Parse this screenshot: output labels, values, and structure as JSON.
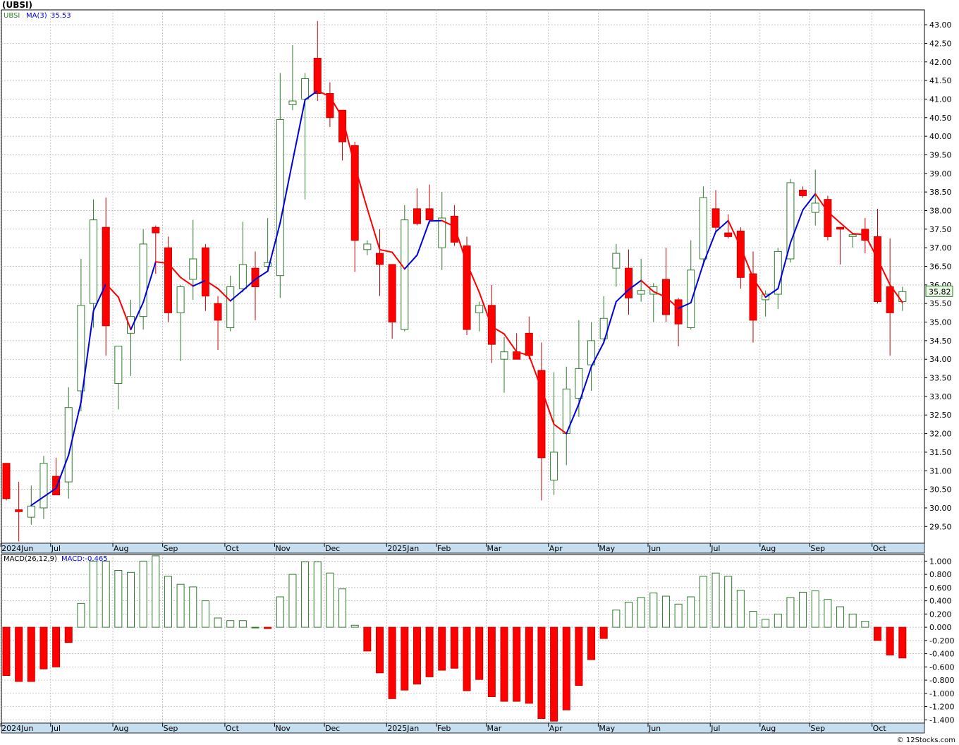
{
  "chart_data": [
    {
      "type": "candlestick",
      "title": "(UBSI)",
      "symbol": "UBSI",
      "ma_label": "MA(3)",
      "ma_value": "35.53",
      "last_price": "35.82",
      "ylim": [
        29.05,
        43.4
      ],
      "y_ticks": [
        "43.00",
        "42.50",
        "42.00",
        "41.50",
        "41.00",
        "40.50",
        "40.00",
        "39.50",
        "39.00",
        "38.50",
        "38.00",
        "37.50",
        "37.00",
        "36.50",
        "36.00",
        "35.50",
        "35.00",
        "34.50",
        "34.00",
        "33.50",
        "33.00",
        "32.50",
        "32.00",
        "31.50",
        "31.00",
        "30.50",
        "30.00",
        "29.50"
      ],
      "x_month_labels": [
        {
          "label": "2024Jun",
          "week": 0
        },
        {
          "label": "Jul",
          "week": 4
        },
        {
          "label": "Aug",
          "week": 9
        },
        {
          "label": "Sep",
          "week": 13
        },
        {
          "label": "Oct",
          "week": 18
        },
        {
          "label": "Nov",
          "week": 22
        },
        {
          "label": "Dec",
          "week": 26
        },
        {
          "label": "2025Jan",
          "week": 31
        },
        {
          "label": "Feb",
          "week": 35
        },
        {
          "label": "Mar",
          "week": 39
        },
        {
          "label": "Apr",
          "week": 44
        },
        {
          "label": "May",
          "week": 48
        },
        {
          "label": "Jun",
          "week": 52
        },
        {
          "label": "Jul",
          "week": 57
        },
        {
          "label": "Aug",
          "week": 61
        },
        {
          "label": "Sep",
          "week": 65
        },
        {
          "label": "Oct",
          "week": 70
        }
      ],
      "candles": [
        {
          "o": 31.2,
          "h": 31.2,
          "l": 30.2,
          "c": 30.25
        },
        {
          "o": 29.95,
          "h": 30.7,
          "l": 29.1,
          "c": 29.9
        },
        {
          "o": 29.75,
          "h": 30.6,
          "l": 29.55,
          "c": 30.05
        },
        {
          "o": 30.0,
          "h": 31.4,
          "l": 29.7,
          "c": 31.2
        },
        {
          "o": 30.85,
          "h": 31.35,
          "l": 30.35,
          "c": 30.35
        },
        {
          "o": 30.7,
          "h": 33.25,
          "l": 30.25,
          "c": 32.7
        },
        {
          "o": 33.15,
          "h": 36.7,
          "l": 32.6,
          "c": 35.45
        },
        {
          "o": 35.5,
          "h": 38.3,
          "l": 34.85,
          "c": 37.75
        },
        {
          "o": 37.55,
          "h": 38.35,
          "l": 34.1,
          "c": 34.9
        },
        {
          "o": 33.35,
          "h": 34.35,
          "l": 32.65,
          "c": 34.35
        },
        {
          "o": 34.7,
          "h": 35.6,
          "l": 33.55,
          "c": 35.15
        },
        {
          "o": 35.15,
          "h": 37.5,
          "l": 34.8,
          "c": 37.1
        },
        {
          "o": 37.55,
          "h": 37.6,
          "l": 36.3,
          "c": 37.4
        },
        {
          "o": 37.0,
          "h": 37.3,
          "l": 35.0,
          "c": 35.25
        },
        {
          "o": 35.25,
          "h": 36.0,
          "l": 33.95,
          "c": 35.95
        },
        {
          "o": 36.15,
          "h": 37.75,
          "l": 35.6,
          "c": 36.7
        },
        {
          "o": 37.0,
          "h": 37.1,
          "l": 35.3,
          "c": 35.7
        },
        {
          "o": 35.5,
          "h": 35.7,
          "l": 34.25,
          "c": 35.05
        },
        {
          "o": 34.85,
          "h": 36.25,
          "l": 34.75,
          "c": 35.95
        },
        {
          "o": 35.9,
          "h": 37.7,
          "l": 35.8,
          "c": 36.55
        },
        {
          "o": 36.45,
          "h": 36.9,
          "l": 35.05,
          "c": 35.95
        },
        {
          "o": 36.5,
          "h": 37.8,
          "l": 36.35,
          "c": 36.6
        },
        {
          "o": 36.25,
          "h": 41.7,
          "l": 35.65,
          "c": 40.45
        },
        {
          "o": 40.85,
          "h": 42.45,
          "l": 40.7,
          "c": 40.95
        },
        {
          "o": 41.0,
          "h": 41.7,
          "l": 38.3,
          "c": 41.55
        },
        {
          "o": 42.1,
          "h": 43.1,
          "l": 40.95,
          "c": 41.15
        },
        {
          "o": 41.15,
          "h": 41.45,
          "l": 40.25,
          "c": 40.5
        },
        {
          "o": 40.7,
          "h": 40.7,
          "l": 39.35,
          "c": 39.85
        },
        {
          "o": 39.75,
          "h": 39.85,
          "l": 36.35,
          "c": 37.2
        },
        {
          "o": 36.95,
          "h": 37.2,
          "l": 36.8,
          "c": 37.1
        },
        {
          "o": 36.85,
          "h": 37.5,
          "l": 35.7,
          "c": 36.55
        },
        {
          "o": 36.55,
          "h": 36.55,
          "l": 34.55,
          "c": 35.0
        },
        {
          "o": 34.8,
          "h": 38.15,
          "l": 34.75,
          "c": 37.75
        },
        {
          "o": 38.05,
          "h": 38.6,
          "l": 37.6,
          "c": 37.65
        },
        {
          "o": 38.05,
          "h": 38.7,
          "l": 37.65,
          "c": 37.75
        },
        {
          "o": 37.0,
          "h": 38.5,
          "l": 36.4,
          "c": 37.8
        },
        {
          "o": 37.85,
          "h": 38.15,
          "l": 37.05,
          "c": 37.15
        },
        {
          "o": 37.05,
          "h": 37.3,
          "l": 34.65,
          "c": 34.8
        },
        {
          "o": 35.25,
          "h": 35.55,
          "l": 34.75,
          "c": 35.45
        },
        {
          "o": 35.45,
          "h": 36.0,
          "l": 33.9,
          "c": 34.4
        },
        {
          "o": 34.0,
          "h": 34.6,
          "l": 33.1,
          "c": 34.2
        },
        {
          "o": 34.2,
          "h": 34.7,
          "l": 34.0,
          "c": 34.0
        },
        {
          "o": 34.7,
          "h": 35.15,
          "l": 34.0,
          "c": 34.1
        },
        {
          "o": 33.7,
          "h": 34.45,
          "l": 30.2,
          "c": 31.35
        },
        {
          "o": 30.75,
          "h": 33.65,
          "l": 30.35,
          "c": 31.5
        },
        {
          "o": 32.0,
          "h": 33.8,
          "l": 31.15,
          "c": 33.2
        },
        {
          "o": 32.95,
          "h": 35.05,
          "l": 32.45,
          "c": 33.75
        },
        {
          "o": 33.85,
          "h": 35.0,
          "l": 33.15,
          "c": 34.5
        },
        {
          "o": 34.55,
          "h": 35.7,
          "l": 34.45,
          "c": 35.1
        },
        {
          "o": 36.45,
          "h": 37.1,
          "l": 35.95,
          "c": 36.85
        },
        {
          "o": 36.45,
          "h": 36.95,
          "l": 35.2,
          "c": 35.65
        },
        {
          "o": 35.75,
          "h": 36.7,
          "l": 35.55,
          "c": 35.85
        },
        {
          "o": 35.75,
          "h": 36.05,
          "l": 35.0,
          "c": 35.95
        },
        {
          "o": 36.15,
          "h": 37.0,
          "l": 35.0,
          "c": 35.2
        },
        {
          "o": 35.6,
          "h": 35.65,
          "l": 34.35,
          "c": 34.95
        },
        {
          "o": 34.85,
          "h": 37.2,
          "l": 34.8,
          "c": 36.4
        },
        {
          "o": 36.7,
          "h": 38.65,
          "l": 36.5,
          "c": 38.35
        },
        {
          "o": 38.05,
          "h": 38.55,
          "l": 37.4,
          "c": 37.55
        },
        {
          "o": 37.4,
          "h": 37.9,
          "l": 37.25,
          "c": 37.3
        },
        {
          "o": 37.45,
          "h": 37.55,
          "l": 35.9,
          "c": 36.2
        },
        {
          "o": 36.3,
          "h": 36.9,
          "l": 34.45,
          "c": 35.05
        },
        {
          "o": 35.6,
          "h": 35.85,
          "l": 35.15,
          "c": 35.75
        },
        {
          "o": 35.75,
          "h": 37.0,
          "l": 35.35,
          "c": 36.9
        },
        {
          "o": 36.7,
          "h": 38.85,
          "l": 36.6,
          "c": 38.75
        },
        {
          "o": 38.55,
          "h": 38.65,
          "l": 38.35,
          "c": 38.4
        },
        {
          "o": 37.95,
          "h": 39.1,
          "l": 37.6,
          "c": 38.2
        },
        {
          "o": 38.3,
          "h": 38.4,
          "l": 37.2,
          "c": 37.3
        },
        {
          "o": 37.55,
          "h": 37.55,
          "l": 36.55,
          "c": 37.5
        },
        {
          "o": 37.3,
          "h": 37.4,
          "l": 37.0,
          "c": 37.35
        },
        {
          "o": 37.5,
          "h": 37.8,
          "l": 36.85,
          "c": 37.2
        },
        {
          "o": 37.3,
          "h": 38.05,
          "l": 35.5,
          "c": 35.55
        },
        {
          "o": 35.95,
          "h": 37.25,
          "l": 34.1,
          "c": 35.25
        },
        {
          "o": 35.55,
          "h": 35.95,
          "l": 35.3,
          "c": 35.82
        }
      ],
      "ma3": [
        null,
        null,
        30.07,
        30.3,
        30.53,
        31.42,
        32.85,
        35.3,
        36.03,
        35.67,
        34.8,
        35.53,
        36.62,
        36.58,
        36.2,
        35.97,
        36.12,
        35.9,
        35.57,
        35.85,
        36.15,
        36.37,
        37.67,
        39.33,
        40.98,
        41.22,
        41.07,
        40.5,
        39.2,
        38.05,
        36.95,
        36.88,
        36.43,
        36.8,
        37.72,
        37.73,
        37.57,
        36.58,
        35.8,
        34.88,
        34.68,
        34.2,
        34.1,
        33.2,
        32.25,
        32.0,
        32.8,
        33.8,
        34.45,
        35.55,
        35.87,
        36.12,
        35.82,
        35.67,
        35.37,
        35.52,
        36.57,
        37.43,
        37.73,
        37.02,
        36.18,
        35.67,
        35.9,
        37.13,
        38.02,
        38.45,
        37.97,
        37.67,
        37.38,
        37.35,
        36.7,
        36.0,
        35.53
      ],
      "ma_color_up": "#0000dd",
      "ma_color_down": "#ff0000"
    },
    {
      "type": "bar",
      "label": "MACD(26,12,9)",
      "value_label": "MACD:-0.465",
      "ylim": [
        -1.45,
        1.1
      ],
      "y_ticks": [
        "1.000",
        "0.800",
        "0.600",
        "0.400",
        "0.200",
        "0.000",
        "-0.200",
        "-0.400",
        "-0.600",
        "-0.800",
        "-1.000",
        "-1.200",
        "-1.400"
      ],
      "values": [
        -0.73,
        -0.82,
        -0.82,
        -0.63,
        -0.6,
        -0.23,
        0.36,
        1.0,
        1.0,
        0.86,
        0.83,
        1.0,
        1.08,
        0.77,
        0.65,
        0.61,
        0.4,
        0.14,
        0.1,
        0.1,
        0.0,
        -0.02,
        0.46,
        0.8,
        0.99,
        0.99,
        0.82,
        0.58,
        0.03,
        -0.36,
        -0.69,
        -1.08,
        -0.95,
        -0.86,
        -0.75,
        -0.65,
        -0.62,
        -0.96,
        -0.79,
        -1.05,
        -1.12,
        -1.12,
        -1.15,
        -1.38,
        -1.42,
        -1.25,
        -0.88,
        -0.49,
        -0.17,
        0.26,
        0.38,
        0.45,
        0.52,
        0.47,
        0.35,
        0.46,
        0.77,
        0.82,
        0.77,
        0.56,
        0.24,
        0.12,
        0.2,
        0.45,
        0.53,
        0.55,
        0.42,
        0.31,
        0.2,
        0.09,
        -0.2,
        -0.42,
        -0.465
      ],
      "up_color": "#2e7d2e",
      "down_color": "#ff0000"
    }
  ],
  "watermark": "© 12Stocks.com"
}
